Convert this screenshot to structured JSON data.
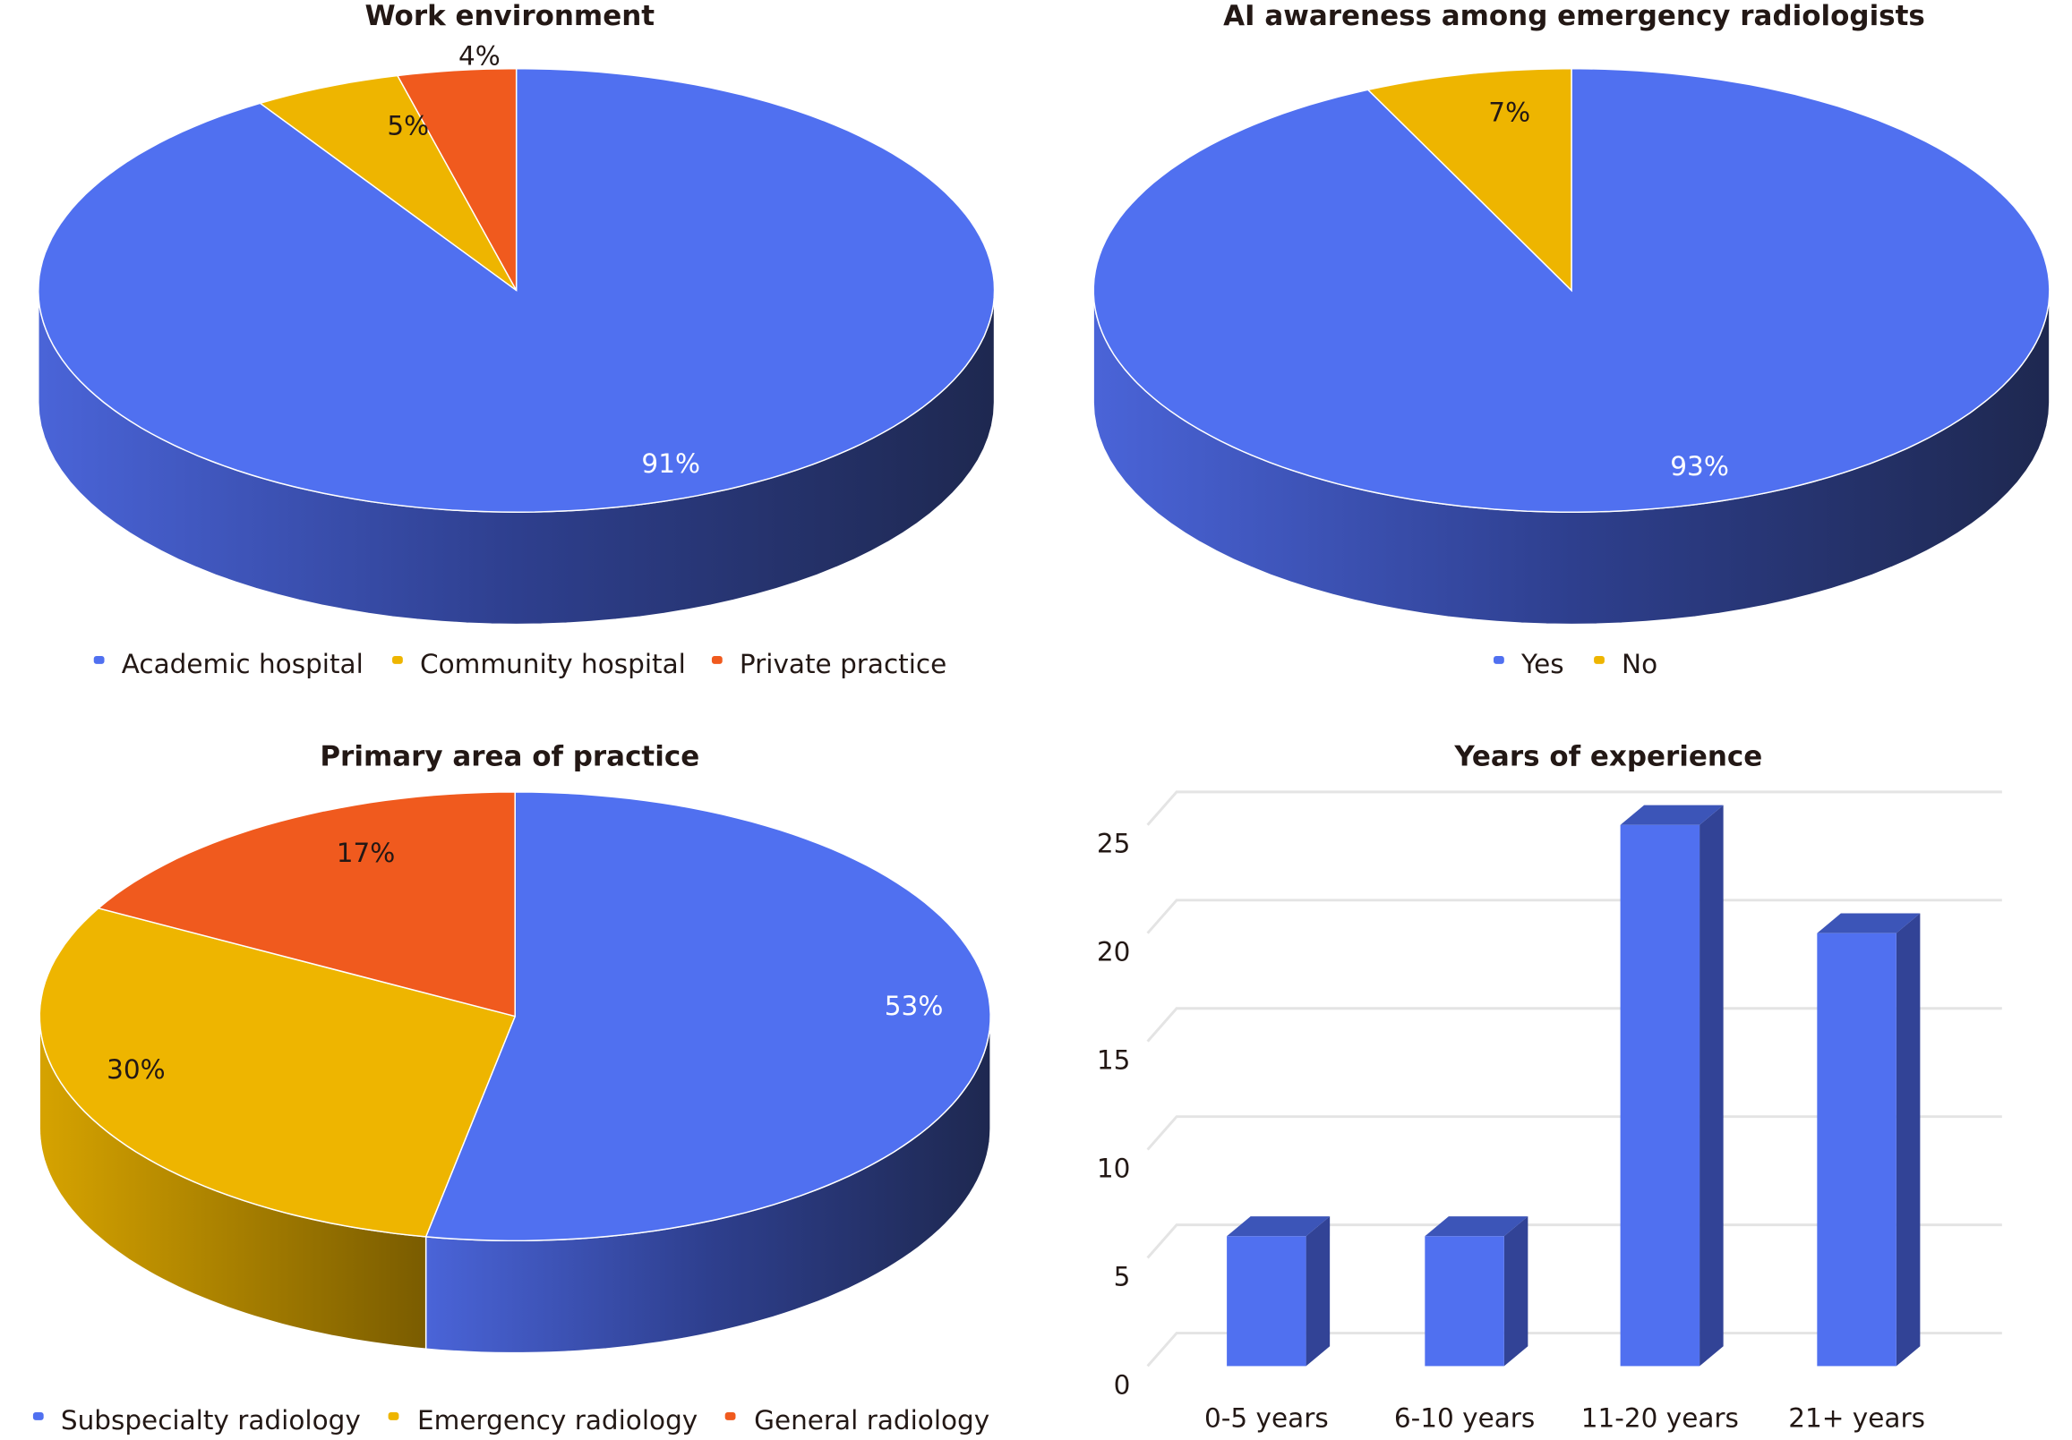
{
  "colors": {
    "blue": "#5070F0",
    "yellow": "#EEB500",
    "orange": "#F05A1E",
    "bar": "#5070F0",
    "bar_side": "#324396",
    "bar_top": "#3C55B8",
    "grid": "#E4E4E4"
  },
  "chart_data": [
    {
      "type": "pie",
      "style": "3d",
      "title": "Work environment",
      "categories": [
        "Academic hospital",
        "Community hospital",
        "Private practice"
      ],
      "values": [
        91,
        5,
        4
      ],
      "labels": [
        "91%",
        "5%",
        "4%"
      ],
      "legend": "bottom"
    },
    {
      "type": "pie",
      "style": "3d",
      "title": "AI awareness among emergency radiologists",
      "categories": [
        "Yes",
        "No"
      ],
      "values": [
        93,
        7
      ],
      "labels": [
        "93%",
        "7%"
      ],
      "legend": "bottom"
    },
    {
      "type": "pie",
      "style": "3d",
      "title": "Primary area of practice",
      "categories": [
        "Subspecialty radiology",
        "Emergency radiology",
        "General radiology"
      ],
      "values": [
        53,
        30,
        17
      ],
      "labels": [
        "53%",
        "30%",
        "17%"
      ],
      "legend": "bottom"
    },
    {
      "type": "bar",
      "style": "3d",
      "title": "Years of experience",
      "categories": [
        "0-5 years",
        "6-10 years",
        "11-20 years",
        "21+ years"
      ],
      "values": [
        6,
        6,
        25,
        20
      ],
      "yticks": [
        "0",
        "5",
        "10",
        "15",
        "20",
        "25"
      ],
      "ylim": [
        0,
        25
      ],
      "grid": true,
      "xlabel": "",
      "ylabel": ""
    }
  ]
}
